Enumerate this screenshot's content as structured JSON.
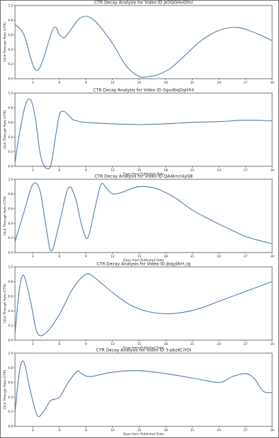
{
  "chart_data": [
    {
      "type": "line",
      "title": "CTR Decay Analysis for Video ID jkOQGHvO0nI",
      "xlabel": "",
      "ylabel": "Click Through Rate (CTR)",
      "xlim": [
        1,
        30
      ],
      "ylim": [
        0,
        1.0
      ],
      "xticks": [
        3,
        6,
        9,
        12,
        15,
        18,
        21,
        24,
        27,
        30
      ],
      "yticks": [
        0.0,
        0.2,
        0.4,
        0.6,
        0.8,
        1.0
      ],
      "series_color": "#4c78a8",
      "x": [
        1,
        2,
        3.5,
        5.3,
        6,
        6.5,
        7,
        8.5,
        10,
        12,
        13.5,
        15,
        16,
        17,
        18.5,
        20,
        22,
        24,
        26,
        28,
        30
      ],
      "y": [
        0.74,
        0.6,
        0.11,
        0.68,
        0.6,
        0.56,
        0.62,
        0.84,
        0.79,
        0.48,
        0.18,
        0.03,
        0.03,
        0.05,
        0.14,
        0.3,
        0.52,
        0.66,
        0.7,
        0.63,
        0.52
      ]
    },
    {
      "type": "line",
      "title": "CTR Decay Analysis for Video ID OgvdbqOqHX4",
      "xlabel": "Days from Published Date",
      "ylabel": "Click Through Rate (CTR)",
      "xlim": [
        1,
        30
      ],
      "ylim": [
        0,
        1.0
      ],
      "xticks": [
        3,
        6,
        9,
        12,
        15,
        18,
        21,
        24,
        27,
        30
      ],
      "yticks": [
        0.0,
        0.2,
        0.4,
        0.6,
        0.8,
        1.0
      ],
      "series_color": "#4c78a8",
      "x": [
        1,
        1.5,
        2.2,
        2.8,
        3.3,
        3.8,
        4.3,
        5,
        5.5,
        6,
        6.5,
        7,
        7.5,
        8,
        9,
        12,
        15,
        18,
        21,
        24,
        27,
        30
      ],
      "y": [
        0.05,
        0.45,
        0.85,
        0.9,
        0.65,
        0.2,
        0.0,
        0.0,
        0.35,
        0.7,
        0.75,
        0.7,
        0.64,
        0.62,
        0.6,
        0.58,
        0.57,
        0.58,
        0.6,
        0.61,
        0.63,
        0.62
      ]
    },
    {
      "type": "line",
      "title": "CTR Decay Analysis for Video ID QA4knci4yQ8",
      "xlabel": "Days from Published Date",
      "ylabel": "Click Through Rate (CTR)",
      "xlim": [
        1,
        30
      ],
      "ylim": [
        0,
        1.0
      ],
      "xticks": [
        3,
        6,
        9,
        12,
        15,
        18,
        21,
        24,
        27,
        30
      ],
      "yticks": [
        0.0,
        0.2,
        0.4,
        0.6,
        0.8,
        1.0
      ],
      "series_color": "#4c78a8",
      "x": [
        1,
        2,
        3,
        3.8,
        4.5,
        5.1,
        6,
        7,
        7.8,
        8.5,
        9.2,
        10,
        10.7,
        11.3,
        12,
        13,
        15,
        17,
        19,
        21,
        23,
        25,
        27,
        29,
        30
      ],
      "y": [
        0.15,
        0.55,
        0.93,
        0.85,
        0.35,
        0.02,
        0.4,
        0.88,
        0.75,
        0.38,
        0.2,
        0.6,
        0.93,
        0.88,
        0.8,
        0.82,
        0.9,
        0.87,
        0.75,
        0.58,
        0.45,
        0.33,
        0.22,
        0.15,
        0.12
      ]
    },
    {
      "type": "line",
      "title": "CTR Decay Analysis for Video ID jbqyjiKm_Ig",
      "xlabel": "Days from Published Date",
      "ylabel": "Click Through Rate (CTR)",
      "xlim": [
        1,
        30
      ],
      "ylim": [
        0,
        1.0
      ],
      "xticks": [
        3,
        6,
        9,
        12,
        15,
        18,
        21,
        24,
        27,
        30
      ],
      "yticks": [
        0.0,
        0.2,
        0.4,
        0.6,
        0.8,
        1.0
      ],
      "series_color": "#4c78a8",
      "x": [
        1,
        1.5,
        2,
        2.8,
        3.5,
        4.5,
        6,
        7.5,
        9,
        10,
        12,
        14,
        16,
        18,
        20,
        22,
        24,
        26,
        28,
        30
      ],
      "y": [
        0.1,
        0.7,
        0.88,
        0.5,
        0.1,
        0.1,
        0.35,
        0.7,
        0.9,
        0.85,
        0.65,
        0.48,
        0.39,
        0.36,
        0.38,
        0.44,
        0.53,
        0.62,
        0.71,
        0.8
      ]
    },
    {
      "type": "line",
      "title": "CTR Decay Analysis for Video ID 3-pbzKCiYDI",
      "xlabel": "Days from Published Date",
      "ylabel": "Click Through Rate (CTR)",
      "xlim": [
        1,
        30
      ],
      "ylim": [
        0,
        1.0
      ],
      "xticks": [
        3,
        6,
        9,
        12,
        15,
        18,
        21,
        24,
        27,
        30
      ],
      "yticks": [
        0.0,
        0.2,
        0.4,
        0.6,
        0.8,
        1.0
      ],
      "series_color": "#4c78a8",
      "x": [
        1,
        1.5,
        2,
        2.7,
        3.5,
        4.2,
        5,
        6,
        7,
        8,
        8.5,
        9.5,
        12,
        15,
        18,
        21,
        24,
        25.5,
        27,
        28,
        29,
        30
      ],
      "y": [
        0.2,
        0.75,
        0.88,
        0.5,
        0.15,
        0.2,
        0.35,
        0.4,
        0.6,
        0.75,
        0.72,
        0.68,
        0.74,
        0.76,
        0.72,
        0.66,
        0.6,
        0.68,
        0.72,
        0.65,
        0.48,
        0.46
      ]
    }
  ]
}
